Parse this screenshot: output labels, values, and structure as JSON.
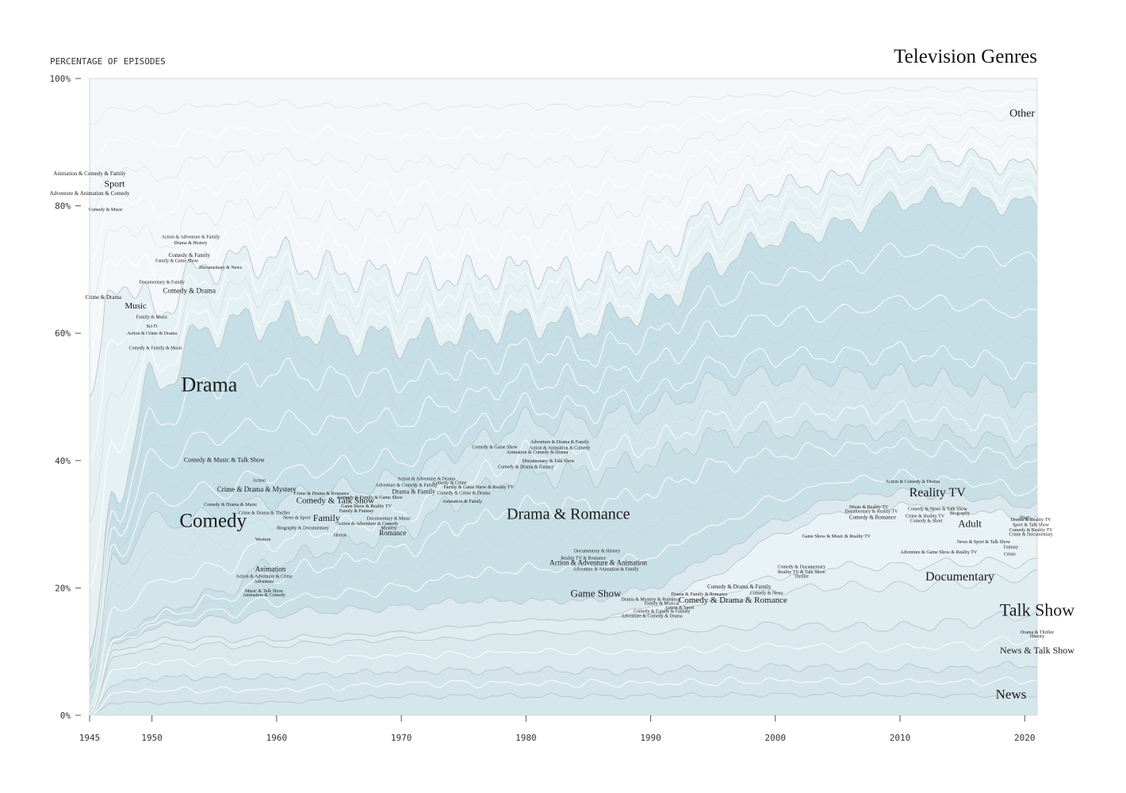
{
  "chart_data": {
    "type": "area",
    "title": "Television Genres",
    "ylabel": "PERCENTAGE OF EPISODES",
    "xlabel": "",
    "xlim": [
      1945,
      2021
    ],
    "ylim": [
      0,
      100
    ],
    "x_ticks": [
      {
        "value": 1945,
        "label": "1945"
      },
      {
        "value": 1950,
        "label": "1950"
      },
      {
        "value": 1960,
        "label": "1960"
      },
      {
        "value": 1970,
        "label": "1970"
      },
      {
        "value": 1980,
        "label": "1980"
      },
      {
        "value": 1990,
        "label": "1990"
      },
      {
        "value": 2000,
        "label": "2000"
      },
      {
        "value": 2010,
        "label": "2010"
      },
      {
        "value": 2020,
        "label": "2020"
      }
    ],
    "y_ticks": [
      {
        "value": 0,
        "label": "0%"
      },
      {
        "value": 20,
        "label": "20%"
      },
      {
        "value": 40,
        "label": "40%"
      },
      {
        "value": 60,
        "label": "60%"
      },
      {
        "value": 80,
        "label": "80%"
      },
      {
        "value": 100,
        "label": "100%"
      }
    ],
    "grid": false,
    "x": [
      1945,
      1947,
      1950,
      1955,
      1960,
      1965,
      1970,
      1975,
      1980,
      1985,
      1990,
      1995,
      2000,
      2005,
      2010,
      2015,
      2021
    ],
    "series": [
      {
        "name": "News",
        "values": [
          0,
          2,
          2,
          2,
          2,
          2.5,
          3,
          3,
          3,
          3,
          3,
          3,
          3,
          3,
          3,
          3,
          3
        ]
      },
      {
        "name": "News & Talk Show",
        "values": [
          0,
          3,
          4,
          4,
          4,
          4,
          4,
          4,
          4,
          4,
          4,
          4,
          4,
          4,
          4,
          4,
          5
        ]
      },
      {
        "name": "Talk Show",
        "values": [
          0,
          4,
          5,
          5,
          5,
          5,
          5,
          5,
          6,
          6,
          6,
          6,
          6,
          6,
          6,
          7,
          8
        ]
      },
      {
        "name": "Documentary",
        "values": [
          0,
          1,
          1,
          1,
          1,
          1,
          1,
          2,
          2,
          2,
          3,
          4,
          5,
          6,
          6,
          6,
          6
        ]
      },
      {
        "name": "Adult",
        "values": [
          0,
          0,
          0,
          0,
          0,
          0,
          0,
          0,
          0,
          0,
          0,
          1,
          2,
          3,
          3,
          3,
          2
        ]
      },
      {
        "name": "Reality TV",
        "values": [
          0,
          0,
          0,
          0,
          0,
          0,
          0,
          0,
          0,
          0,
          1,
          3,
          6,
          8,
          9,
          8,
          7
        ]
      },
      {
        "name": "Game Show",
        "values": [
          0,
          1,
          2,
          3,
          4,
          4,
          4,
          4,
          3,
          3,
          3,
          3,
          2,
          2,
          2,
          2,
          2
        ]
      },
      {
        "name": "Drama & Romance",
        "values": [
          0,
          1,
          2,
          4,
          8,
          10,
          12,
          16,
          20,
          20,
          20,
          18,
          13,
          10,
          9,
          9,
          9
        ]
      },
      {
        "name": "Comedy",
        "values": [
          4,
          12,
          15,
          12,
          10,
          9,
          8,
          8,
          8,
          8,
          8,
          8,
          8,
          8,
          8,
          8,
          8
        ]
      },
      {
        "name": "Drama",
        "values": [
          6,
          10,
          22,
          30,
          28,
          24,
          22,
          18,
          16,
          15,
          16,
          18,
          20,
          22,
          26,
          28,
          30
        ]
      },
      {
        "name": "Sport",
        "values": [
          40,
          35,
          12,
          10,
          10,
          10,
          10,
          9,
          8,
          8,
          8,
          8,
          7,
          7,
          7,
          6,
          6
        ]
      },
      {
        "name": "Other",
        "values": [
          50,
          31,
          37,
          29,
          28,
          30.5,
          31,
          31,
          30,
          31,
          28,
          20,
          16,
          15,
          11,
          12,
          14
        ]
      }
    ],
    "labels": [
      {
        "text": "Other",
        "x": 2019.8,
        "y": 94,
        "size": 14
      },
      {
        "text": "Animation & Comedy & Family",
        "x": 1945,
        "y": 84.8,
        "size": 7
      },
      {
        "text": "Sport",
        "x": 1947,
        "y": 83,
        "size": 12
      },
      {
        "text": "Adventure & Animation & Comedy",
        "x": 1945,
        "y": 81.7,
        "size": 7
      },
      {
        "text": "Comedy & Music",
        "x": 1946.3,
        "y": 79.2,
        "size": 6
      },
      {
        "text": "Action & Adventure & Family",
        "x": 1953.1,
        "y": 74.9,
        "size": 6
      },
      {
        "text": "Drama & History",
        "x": 1953.1,
        "y": 74,
        "size": 6
      },
      {
        "text": "Comedy & Family",
        "x": 1953,
        "y": 72,
        "size": 7
      },
      {
        "text": "Family & Game Show",
        "x": 1952,
        "y": 71.2,
        "size": 6
      },
      {
        "text": "Documentary & News",
        "x": 1955.5,
        "y": 70.1,
        "size": 6
      },
      {
        "text": "Documentary & Family",
        "x": 1950.8,
        "y": 67.8,
        "size": 6
      },
      {
        "text": "Comedy & Drama",
        "x": 1953,
        "y": 66.3,
        "size": 9
      },
      {
        "text": "Crime & Drama",
        "x": 1946.1,
        "y": 65.4,
        "size": 7
      },
      {
        "text": "Music",
        "x": 1948.7,
        "y": 63.9,
        "size": 11
      },
      {
        "text": "Family & Music",
        "x": 1950,
        "y": 62.3,
        "size": 6
      },
      {
        "text": "Sci Fi",
        "x": 1950,
        "y": 60.9,
        "size": 6
      },
      {
        "text": "Action & Crime & Drama",
        "x": 1950,
        "y": 59.8,
        "size": 6
      },
      {
        "text": "Comedy & Family & Music",
        "x": 1950.3,
        "y": 57.5,
        "size": 6
      },
      {
        "text": "Drama",
        "x": 1954.6,
        "y": 50.9,
        "size": 26
      },
      {
        "text": "Comedy & Music & Talk Show",
        "x": 1955.8,
        "y": 39.8,
        "size": 8
      },
      {
        "text": "Action",
        "x": 1958.6,
        "y": 36.7,
        "size": 6
      },
      {
        "text": "Crime & Drama & Mystery",
        "x": 1958.4,
        "y": 35.1,
        "size": 9
      },
      {
        "text": "Crime & Drama & Romance",
        "x": 1963.6,
        "y": 34.6,
        "size": 6
      },
      {
        "text": "Comedy & Family & Game Show",
        "x": 1967.5,
        "y": 34,
        "size": 6
      },
      {
        "text": "Comedy & Talk Show",
        "x": 1964.7,
        "y": 33.3,
        "size": 11
      },
      {
        "text": "Comedy & Drama & Music",
        "x": 1956.3,
        "y": 32.9,
        "size": 6
      },
      {
        "text": "Game Show & Reality TV",
        "x": 1967.2,
        "y": 32.6,
        "size": 6
      },
      {
        "text": "Family & Fantasy",
        "x": 1966.4,
        "y": 31.9,
        "size": 6
      },
      {
        "text": "Crime & Drama & Thriller",
        "x": 1959,
        "y": 31.6,
        "size": 6
      },
      {
        "text": "News & Sport",
        "x": 1961.6,
        "y": 30.8,
        "size": 6
      },
      {
        "text": "Family",
        "x": 1964,
        "y": 30.5,
        "size": 12
      },
      {
        "text": "Documentary & Music",
        "x": 1969,
        "y": 30.7,
        "size": 6
      },
      {
        "text": "Action & Adventure & Comedy",
        "x": 1967.3,
        "y": 29.9,
        "size": 6
      },
      {
        "text": "Biography & Documentary",
        "x": 1962.1,
        "y": 29.2,
        "size": 6
      },
      {
        "text": "Mystery",
        "x": 1969,
        "y": 29.2,
        "size": 6
      },
      {
        "text": "Comedy",
        "x": 1954.9,
        "y": 29.6,
        "size": 25
      },
      {
        "text": "Romance",
        "x": 1969.3,
        "y": 28.3,
        "size": 9
      },
      {
        "text": "Horror",
        "x": 1965.1,
        "y": 28.1,
        "size": 6
      },
      {
        "text": "Western",
        "x": 1958.9,
        "y": 27.4,
        "size": 6
      },
      {
        "text": "Animation",
        "x": 1959.5,
        "y": 22.6,
        "size": 9
      },
      {
        "text": "Action & Adventure & Crime",
        "x": 1959,
        "y": 21.6,
        "size": 6
      },
      {
        "text": "Adventure",
        "x": 1959,
        "y": 20.8,
        "size": 6
      },
      {
        "text": "Music & Talk Show",
        "x": 1959,
        "y": 19.3,
        "size": 6
      },
      {
        "text": "Animation & Comedy",
        "x": 1959,
        "y": 18.7,
        "size": 6
      },
      {
        "text": "Action & Adventure & Drama",
        "x": 1972,
        "y": 36.9,
        "size": 6
      },
      {
        "text": "Comedy & Crime",
        "x": 1973.9,
        "y": 36.3,
        "size": 6
      },
      {
        "text": "Adventure & Comedy & Family",
        "x": 1970.4,
        "y": 35.9,
        "size": 6
      },
      {
        "text": "Family & Game Show & Reality TV",
        "x": 1976.2,
        "y": 35.6,
        "size": 6
      },
      {
        "text": "Drama & Family",
        "x": 1971,
        "y": 34.8,
        "size": 8
      },
      {
        "text": "Comedy & Crime & Drama",
        "x": 1975,
        "y": 34.7,
        "size": 6
      },
      {
        "text": "Animation & Family",
        "x": 1974.9,
        "y": 33.4,
        "size": 6
      },
      {
        "text": "Adventure & Drama & Family",
        "x": 1982.7,
        "y": 42.7,
        "size": 6
      },
      {
        "text": "Comedy & Game Show",
        "x": 1977.5,
        "y": 41.9,
        "size": 6
      },
      {
        "text": "Action & Animation & Comedy",
        "x": 1982.7,
        "y": 41.8,
        "size": 6
      },
      {
        "text": "Animation & Comedy & Drama",
        "x": 1980.9,
        "y": 41.1,
        "size": 6
      },
      {
        "text": "Documentary & Talk Show",
        "x": 1981.8,
        "y": 39.7,
        "size": 6
      },
      {
        "text": "Comedy & Drama & Fantasy",
        "x": 1980,
        "y": 38.8,
        "size": 6
      },
      {
        "text": "Drama & Romance",
        "x": 1983.4,
        "y": 30.8,
        "size": 20
      },
      {
        "text": "Documentary & History",
        "x": 1985.7,
        "y": 25.6,
        "size": 6
      },
      {
        "text": "Reality TV & Romance",
        "x": 1984.6,
        "y": 24.5,
        "size": 6
      },
      {
        "text": "Action & Adventure & Animation",
        "x": 1985.8,
        "y": 23.6,
        "size": 9
      },
      {
        "text": "Adventure & Animation & Family",
        "x": 1986.4,
        "y": 22.7,
        "size": 6
      },
      {
        "text": "Game Show",
        "x": 1985.6,
        "y": 18.6,
        "size": 13
      },
      {
        "text": "Drama & Mystery & Romance",
        "x": 1990,
        "y": 18,
        "size": 6
      },
      {
        "text": "Family & Musical",
        "x": 1990.9,
        "y": 17.4,
        "size": 6
      },
      {
        "text": "Action & Sport",
        "x": 1992.3,
        "y": 16.7,
        "size": 6
      },
      {
        "text": "Comedy & Family & Fantasy",
        "x": 1990.9,
        "y": 16.1,
        "size": 6
      },
      {
        "text": "Adventure & Comedy & Drama",
        "x": 1990.1,
        "y": 15.4,
        "size": 6
      },
      {
        "text": "Drama & Family & Romance",
        "x": 1993.9,
        "y": 18.8,
        "size": 6
      },
      {
        "text": "Comedy & Drama & Family",
        "x": 1997.1,
        "y": 19.9,
        "size": 7
      },
      {
        "text": "Comedy & News",
        "x": 1999.3,
        "y": 19,
        "size": 6
      },
      {
        "text": "Comedy & Drama & Romance",
        "x": 1996.6,
        "y": 17.7,
        "size": 11
      },
      {
        "text": "Comedy & Documentary",
        "x": 2002.1,
        "y": 23.1,
        "size": 6
      },
      {
        "text": "Reality TV & Talk Show",
        "x": 2002.1,
        "y": 22.3,
        "size": 6
      },
      {
        "text": "Thriller",
        "x": 2002.1,
        "y": 21.6,
        "size": 6
      },
      {
        "text": "Game Show & Music & Reality TV",
        "x": 2004.9,
        "y": 27.9,
        "size": 6
      },
      {
        "text": "Action & Comedy & Drama",
        "x": 2011,
        "y": 36.5,
        "size": 6
      },
      {
        "text": "Music & Reality TV",
        "x": 2007.5,
        "y": 32.5,
        "size": 6
      },
      {
        "text": "Documentary & Reality TV",
        "x": 2007.7,
        "y": 31.8,
        "size": 6
      },
      {
        "text": "Comedy & Romance",
        "x": 2007.8,
        "y": 30.8,
        "size": 7
      },
      {
        "text": "Reality TV",
        "x": 2013,
        "y": 34.4,
        "size": 16
      },
      {
        "text": "Comedy & News & Talk Show",
        "x": 2013,
        "y": 32.2,
        "size": 6
      },
      {
        "text": "Biography",
        "x": 2014.8,
        "y": 31.5,
        "size": 6
      },
      {
        "text": "Crime & Reality TV",
        "x": 2012,
        "y": 31.1,
        "size": 6
      },
      {
        "text": "Comedy & Short",
        "x": 2012.1,
        "y": 30.3,
        "size": 6
      },
      {
        "text": "Adult",
        "x": 2015.6,
        "y": 29.6,
        "size": 13
      },
      {
        "text": "Short",
        "x": 2020,
        "y": 30.8,
        "size": 6
      },
      {
        "text": "Drama & Reality TV",
        "x": 2020.5,
        "y": 30.5,
        "size": 6
      },
      {
        "text": "Sport & Talk Show",
        "x": 2020.5,
        "y": 29.7,
        "size": 6
      },
      {
        "text": "Comedy & Reality TV",
        "x": 2020.5,
        "y": 28.9,
        "size": 6
      },
      {
        "text": "Crime & Documentary",
        "x": 2020.5,
        "y": 28.2,
        "size": 6
      },
      {
        "text": "News & Sport & Talk Show",
        "x": 2016.7,
        "y": 27,
        "size": 6
      },
      {
        "text": "Fantasy",
        "x": 2018.9,
        "y": 26.2,
        "size": 6
      },
      {
        "text": "Adventure & Game Show & Reality TV",
        "x": 2013.1,
        "y": 25.4,
        "size": 6
      },
      {
        "text": "Crime",
        "x": 2018.8,
        "y": 25.1,
        "size": 6
      },
      {
        "text": "Documentary",
        "x": 2014.8,
        "y": 21.2,
        "size": 16
      },
      {
        "text": "Talk Show",
        "x": 2021,
        "y": 15.6,
        "size": 22
      },
      {
        "text": "Drama & Thriller",
        "x": 2021,
        "y": 12.8,
        "size": 6
      },
      {
        "text": "History",
        "x": 2021,
        "y": 12.2,
        "size": 6
      },
      {
        "text": "News & Talk Show",
        "x": 2021,
        "y": 9.7,
        "size": 12
      },
      {
        "text": "News",
        "x": 2018.9,
        "y": 2.6,
        "size": 17
      }
    ]
  }
}
